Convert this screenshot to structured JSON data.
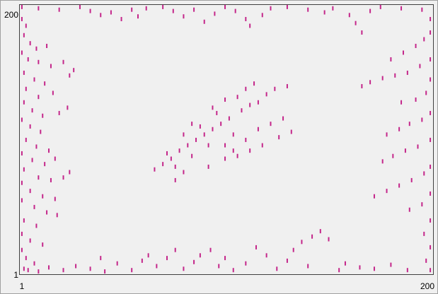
{
  "chart_data": {
    "type": "scatter",
    "color": "#c4268a",
    "xlim": [
      1,
      200
    ],
    "ylim": [
      1,
      200
    ],
    "xticks": [
      1,
      200
    ],
    "yticks": [
      1,
      200
    ],
    "x": [
      2,
      4,
      3,
      6,
      9,
      14,
      2,
      5,
      10,
      16,
      22,
      27,
      25,
      3,
      8,
      13,
      4,
      10,
      17,
      3,
      7,
      12,
      20,
      24,
      2,
      6,
      11,
      4,
      9,
      15,
      2,
      7,
      13,
      18,
      3,
      10,
      16,
      22,
      25,
      2,
      6,
      12,
      18,
      2,
      8,
      14,
      19,
      3,
      9,
      2,
      6,
      12,
      2,
      4,
      8,
      3,
      2,
      10,
      20,
      30,
      35,
      40,
      45,
      50,
      55,
      58,
      62,
      70,
      75,
      80,
      85,
      90,
      95,
      100,
      105,
      110,
      112,
      118,
      122,
      130,
      140,
      148,
      152,
      160,
      163,
      166,
      170,
      175,
      185,
      195,
      199,
      199,
      196,
      192,
      186,
      180,
      199,
      194,
      188,
      182,
      176,
      170,
      166,
      199,
      197,
      192,
      185,
      199,
      195,
      189,
      184,
      178,
      199,
      193,
      187,
      181,
      176,
      199,
      196,
      190,
      184,
      178,
      172,
      199,
      195,
      189,
      199,
      196,
      199,
      197,
      199,
      5,
      10,
      15,
      22,
      28,
      35,
      40,
      42,
      48,
      55,
      60,
      63,
      67,
      72,
      76,
      80,
      85,
      88,
      93,
      97,
      100,
      104,
      110,
      115,
      120,
      125,
      130,
      133,
      137,
      142,
      146,
      150,
      140,
      155,
      158,
      165,
      172,
      180,
      188,
      66,
      70,
      74,
      72,
      78,
      76,
      82,
      86,
      84,
      90,
      94,
      88,
      92,
      98,
      102,
      96,
      104,
      108,
      112,
      106,
      116,
      120,
      124,
      130,
      110,
      114,
      100,
      104,
      110,
      116,
      122,
      128,
      80,
      84,
      94,
      100,
      76,
      80,
      92,
      100,
      106,
      112,
      118,
      126,
      132
    ],
    "values": [
      190,
      185,
      178,
      172,
      168,
      170,
      165,
      160,
      158,
      155,
      158,
      152,
      148,
      150,
      145,
      142,
      138,
      132,
      135,
      128,
      122,
      118,
      120,
      124,
      115,
      110,
      106,
      100,
      95,
      92,
      90,
      85,
      82,
      86,
      78,
      72,
      70,
      72,
      76,
      68,
      62,
      58,
      56,
      55,
      50,
      46,
      44,
      40,
      36,
      30,
      25,
      22,
      18,
      12,
      8,
      4,
      199,
      198,
      197,
      199,
      196,
      193,
      195,
      190,
      197,
      192,
      198,
      199,
      196,
      192,
      197,
      188,
      194,
      199,
      196,
      190,
      185,
      193,
      198,
      199,
      197,
      195,
      198,
      193,
      187,
      180,
      196,
      199,
      198,
      197,
      190,
      180,
      175,
      170,
      165,
      160,
      160,
      155,
      150,
      148,
      146,
      143,
      140,
      145,
      135,
      130,
      128,
      120,
      115,
      112,
      108,
      104,
      100,
      95,
      92,
      88,
      84,
      80,
      75,
      70,
      66,
      62,
      58,
      60,
      52,
      48,
      40,
      30,
      20,
      10,
      3,
      3,
      2,
      5,
      3,
      6,
      4,
      12,
      2,
      8,
      3,
      10,
      14,
      6,
      12,
      18,
      4,
      9,
      14,
      18,
      6,
      12,
      3,
      8,
      20,
      14,
      4,
      10,
      18,
      24,
      28,
      32,
      26,
      6,
      3,
      8,
      5,
      4,
      7,
      3,
      78,
      82,
      86,
      90,
      92,
      80,
      96,
      100,
      88,
      104,
      108,
      110,
      96,
      112,
      116,
      120,
      104,
      122,
      126,
      132,
      128,
      134,
      138,
      140,
      138,
      142,
      96,
      92,
      100,
      108,
      112,
      116,
      104,
      112,
      124,
      130,
      70,
      76,
      80,
      86,
      88,
      92,
      96,
      102,
      106
    ]
  }
}
